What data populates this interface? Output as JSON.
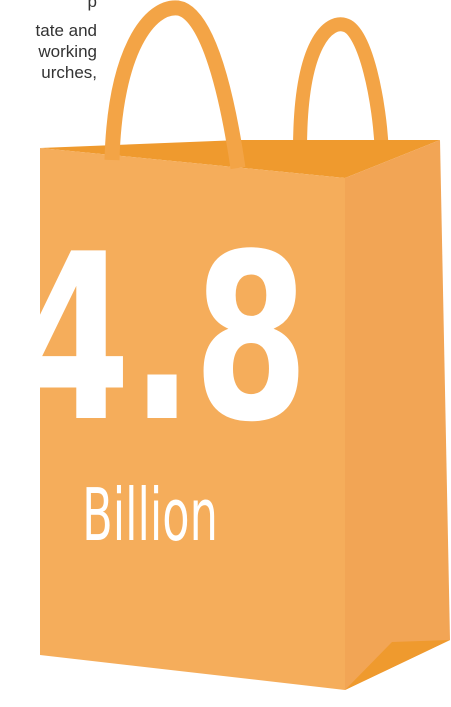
{
  "intro": {
    "lines": [
      "p",
      "tate and",
      "working",
      "urches,"
    ]
  },
  "bag": {
    "figure": "4.8",
    "unit": "Billion"
  }
}
